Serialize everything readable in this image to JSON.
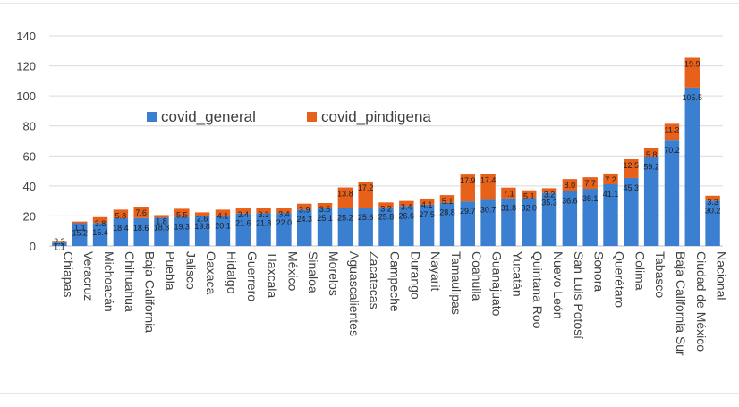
{
  "chart_data": {
    "type": "bar",
    "stacked": true,
    "ylim": [
      0,
      140
    ],
    "yticks": [
      0,
      20,
      40,
      60,
      80,
      100,
      120,
      140
    ],
    "grid": true,
    "legend_position": "upper-left inside plot",
    "categories": [
      "Chiapas",
      "Veracruz",
      "Michoacán",
      "Chihuahua",
      "Baja California",
      "Puebla",
      "Jalisco",
      "Oaxaca",
      "Hidalgo",
      "Guerrero",
      "Tlaxcala",
      "México",
      "Sinaloa",
      "Morelos",
      "Aguascalientes",
      "Zacatecas",
      "Campeche",
      "Durango",
      "Nayarit",
      "Tamaulipas",
      "Coahuila",
      "Guanajuato",
      "Yucatán",
      "Quintana Roo",
      "Nuevo León",
      "San Luis Potosí",
      "Sonora",
      "Querétaro",
      "Colima",
      "Tabasco",
      "Baja California Sur",
      "Ciudad de México",
      "Nacional"
    ],
    "series": [
      {
        "name": "covid_general",
        "color": "#3a7fd0",
        "values": [
          2.3,
          15.2,
          15.4,
          18.4,
          18.6,
          18.8,
          19.3,
          19.8,
          20.1,
          21.6,
          21.8,
          22.0,
          24.3,
          25.1,
          25.2,
          25.6,
          25.8,
          26.6,
          27.5,
          28.8,
          29.7,
          30.7,
          31.8,
          32.0,
          35.3,
          36.6,
          38.1,
          41.1,
          45.3,
          59.2,
          70.2,
          105.5,
          30.2
        ],
        "labels": [
          "2.3",
          "15.2",
          "15.4",
          "18.4",
          "18.6",
          "18.8",
          "19.3",
          "19.8",
          "20.1",
          "21.6",
          "21.8",
          "22.0",
          "24.3",
          "25.1",
          "25.2",
          "25.6",
          "25.8",
          "26.6",
          "27.5",
          "28.8",
          "29.7",
          "30.7",
          "31.8",
          "32.0",
          "35.3",
          "36.6",
          "38.1",
          "41.1",
          "45.3",
          "59.2",
          "70.2",
          "105.5",
          "30.2"
        ]
      },
      {
        "name": "covid_pindigena",
        "color": "#e8611a",
        "values": [
          1.1,
          1.1,
          3.8,
          5.8,
          7.6,
          1.8,
          5.5,
          2.6,
          4.1,
          3.4,
          3.3,
          3.4,
          3.9,
          3.5,
          13.8,
          17.2,
          3.2,
          3.4,
          4.1,
          5.1,
          17.9,
          17.4,
          7.1,
          5.1,
          3.2,
          8.0,
          7.7,
          7.2,
          12.5,
          5.8,
          11.2,
          19.9,
          3.3
        ],
        "labels": [
          "1.1",
          "1.1",
          "3.8",
          "5.8",
          "7.6",
          "1.8",
          "5.5",
          "2.6",
          "4.1",
          "3.4",
          "3.3",
          "3.4",
          "3.9",
          "3.5",
          "13.8",
          "17.2",
          "3.2",
          "3.4",
          "4.1",
          "5.1",
          "17.9",
          "17.4",
          "7.1",
          "5.1",
          "3.2",
          "8.0",
          "7.7",
          "7.2",
          "12.5",
          "5.8",
          "11.2",
          "19.9",
          "3.3"
        ]
      }
    ]
  }
}
